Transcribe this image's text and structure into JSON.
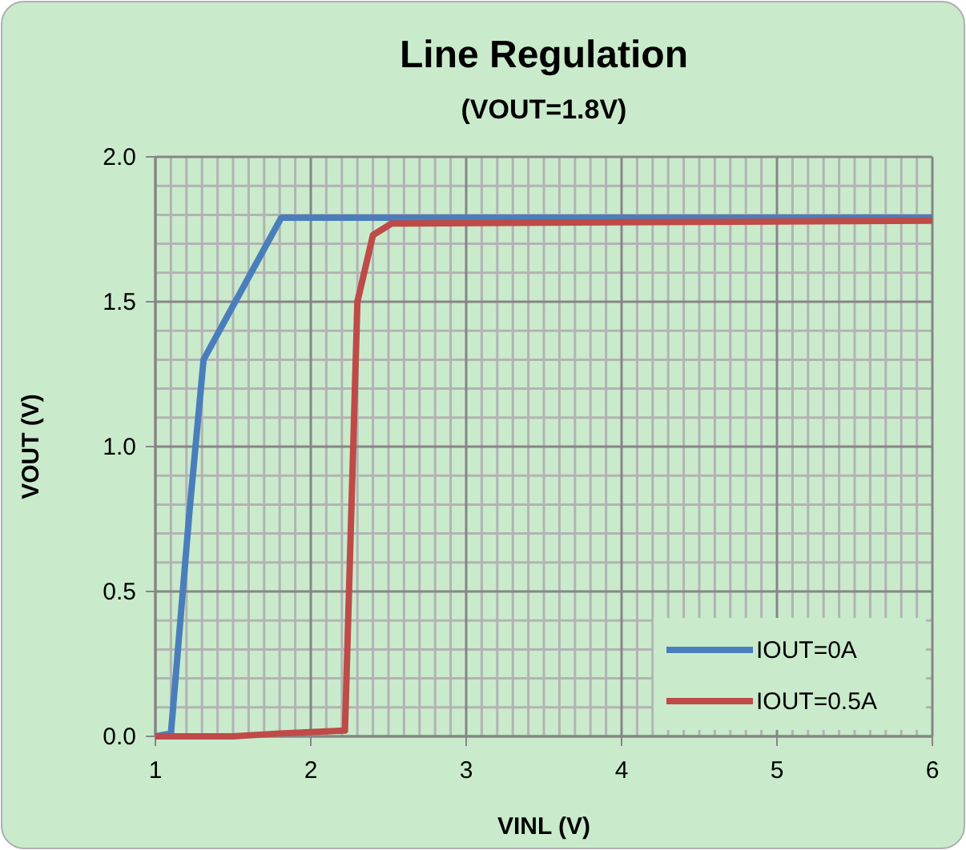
{
  "chart_data": {
    "type": "line",
    "title": "Line Regulation",
    "subtitle": "(VOUT=1.8V)",
    "xlabel": "VINL (V)",
    "ylabel": "VOUT (V)",
    "xlim": [
      1,
      6
    ],
    "xticks": [
      1,
      2,
      3,
      4,
      5,
      6
    ],
    "ylim": [
      0,
      2
    ],
    "yticks": [
      {
        "value": 0,
        "label": "0.0"
      },
      {
        "value": 0.5,
        "label": "0.5"
      },
      {
        "value": 1,
        "label": "1.0"
      },
      {
        "value": 1.5,
        "label": "1.5"
      },
      {
        "value": 2,
        "label": "2.0"
      }
    ],
    "grid": true,
    "legend": "bottom right",
    "marker": "none",
    "line_style": "solid",
    "series": [
      {
        "name": "IOUT=0A",
        "color": "#4a7ebb",
        "x": [
          1,
          1.1,
          1.22,
          1.31,
          1.81,
          6
        ],
        "values": [
          0,
          0.01,
          0.78,
          1.3,
          1.79,
          1.79
        ]
      },
      {
        "name": "IOUT=0.5A",
        "color": "#be4b48",
        "x": [
          1,
          1.5,
          1.8,
          2.22,
          2.3,
          2.4,
          2.52,
          6
        ],
        "values": [
          0,
          0,
          0.01,
          0.02,
          1.5,
          1.73,
          1.77,
          1.78
        ]
      }
    ]
  }
}
